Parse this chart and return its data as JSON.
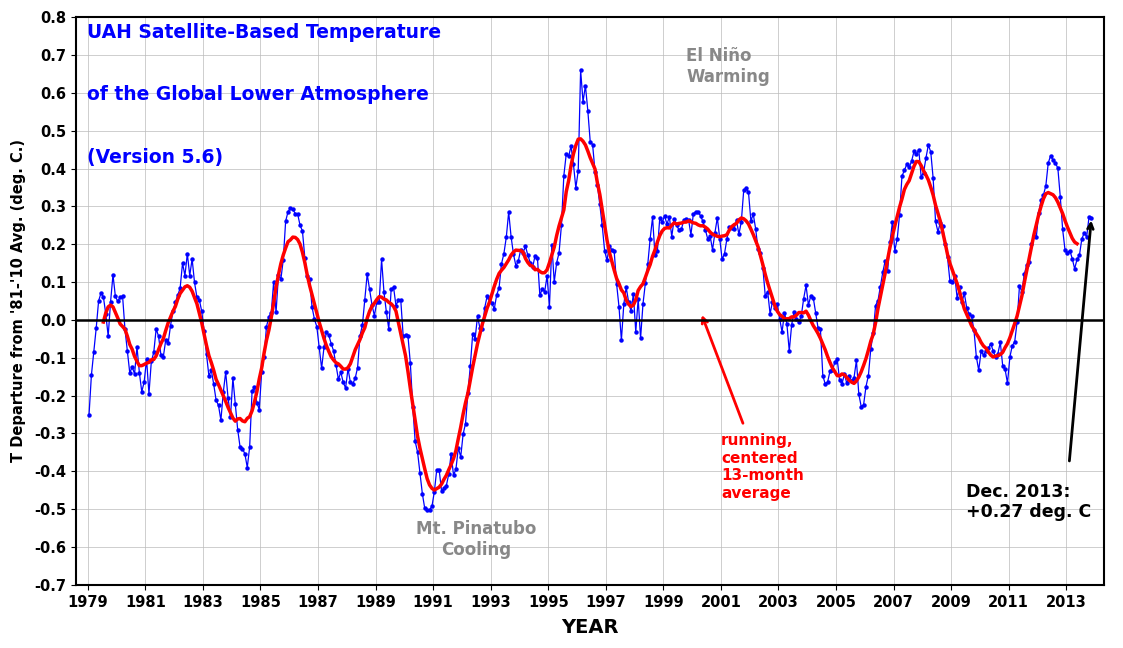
{
  "title_line1": "UAH Satellite-Based Temperature",
  "title_line2": "of the Global Lower Atmosphere",
  "title_line3": "(Version 5.6)",
  "title_color": "#0000FF",
  "xlabel": "YEAR",
  "ylabel": "T Departure from '81-'10 Avg. (deg. C.)",
  "xlim": [
    1978.6,
    2014.3
  ],
  "ylim": [
    -0.7,
    0.8
  ],
  "yticks": [
    -0.7,
    -0.6,
    -0.5,
    -0.4,
    -0.3,
    -0.2,
    -0.1,
    0.0,
    0.1,
    0.2,
    0.3,
    0.4,
    0.5,
    0.6,
    0.7,
    0.8
  ],
  "xticks": [
    1979,
    1981,
    1983,
    1985,
    1987,
    1989,
    1991,
    1993,
    1995,
    1997,
    1999,
    2001,
    2003,
    2005,
    2007,
    2009,
    2011,
    2013
  ],
  "line_color": "#0000FF",
  "smooth_color": "#FF0000",
  "background_color": "#FFFFFF",
  "monthly_data": [
    -0.252,
    -0.146,
    -0.085,
    -0.022,
    0.05,
    0.071,
    0.061,
    0.015,
    -0.043,
    0.048,
    0.119,
    0.062,
    0.049,
    0.06,
    0.063,
    -0.025,
    -0.082,
    -0.14,
    -0.124,
    -0.143,
    -0.071,
    -0.139,
    -0.19,
    -0.164,
    -0.104,
    -0.195,
    -0.109,
    -0.086,
    -0.024,
    -0.043,
    -0.093,
    -0.097,
    -0.053,
    -0.062,
    -0.015,
    0.023,
    0.046,
    0.065,
    0.084,
    0.15,
    0.117,
    0.175,
    0.117,
    0.161,
    0.099,
    0.06,
    0.053,
    0.023,
    -0.029,
    -0.091,
    -0.148,
    -0.133,
    -0.17,
    -0.212,
    -0.226,
    -0.265,
    -0.191,
    -0.138,
    -0.207,
    -0.256,
    -0.154,
    -0.222,
    -0.29,
    -0.336,
    -0.34,
    -0.354,
    -0.39,
    -0.335,
    -0.188,
    -0.178,
    -0.219,
    -0.237,
    -0.137,
    -0.098,
    -0.018,
    0.008,
    0.019,
    0.101,
    0.02,
    0.119,
    0.107,
    0.159,
    0.261,
    0.286,
    0.295,
    0.292,
    0.281,
    0.28,
    0.25,
    0.235,
    0.164,
    0.115,
    0.108,
    0.034,
    0.002,
    -0.018,
    -0.072,
    -0.128,
    -0.072,
    -0.031,
    -0.041,
    -0.063,
    -0.082,
    -0.12,
    -0.157,
    -0.138,
    -0.165,
    -0.18,
    -0.129,
    -0.165,
    -0.169,
    -0.154,
    -0.126,
    -0.042,
    -0.014,
    0.053,
    0.121,
    0.081,
    0.04,
    0.011,
    0.047,
    0.047,
    0.16,
    0.073,
    0.021,
    -0.024,
    0.081,
    0.086,
    0.038,
    0.052,
    0.053,
    -0.042,
    -0.04,
    -0.042,
    -0.115,
    -0.229,
    -0.321,
    -0.349,
    -0.404,
    -0.459,
    -0.498,
    -0.502,
    -0.501,
    -0.493,
    -0.454,
    -0.396,
    -0.396,
    -0.451,
    -0.445,
    -0.438,
    -0.408,
    -0.354,
    -0.41,
    -0.395,
    -0.338,
    -0.362,
    -0.302,
    -0.274,
    -0.193,
    -0.122,
    -0.036,
    -0.05,
    0.009,
    -0.021,
    -0.024,
    0.032,
    0.062,
    0.057,
    0.044,
    0.029,
    0.066,
    0.085,
    0.148,
    0.175,
    0.218,
    0.285,
    0.22,
    0.174,
    0.143,
    0.155,
    0.185,
    0.178,
    0.194,
    0.171,
    0.151,
    0.139,
    0.17,
    0.163,
    0.065,
    0.082,
    0.074,
    0.116,
    0.035,
    0.199,
    0.1,
    0.151,
    0.177,
    0.25,
    0.381,
    0.438,
    0.432,
    0.459,
    0.412,
    0.349,
    0.394,
    0.66,
    0.576,
    0.619,
    0.553,
    0.471,
    0.463,
    0.392,
    0.356,
    0.305,
    0.25,
    0.183,
    0.157,
    0.196,
    0.185,
    0.181,
    0.095,
    0.035,
    -0.054,
    0.041,
    0.086,
    0.048,
    0.023,
    0.068,
    -0.032,
    0.056,
    -0.049,
    0.042,
    0.097,
    0.147,
    0.215,
    0.271,
    0.171,
    0.182,
    0.269,
    0.258,
    0.275,
    0.253,
    0.272,
    0.22,
    0.267,
    0.252,
    0.237,
    0.239,
    0.263,
    0.266,
    0.265,
    0.225,
    0.28,
    0.286,
    0.285,
    0.275,
    0.26,
    0.238,
    0.214,
    0.222,
    0.185,
    0.23,
    0.27,
    0.215,
    0.16,
    0.175,
    0.214,
    0.246,
    0.244,
    0.241,
    0.263,
    0.226,
    0.259,
    0.342,
    0.348,
    0.337,
    0.262,
    0.279,
    0.24,
    0.186,
    0.176,
    0.137,
    0.063,
    0.075,
    0.016,
    0.048,
    0.032,
    0.042,
    0.003,
    -0.032,
    0.019,
    -0.01,
    -0.082,
    -0.013,
    0.022,
    0.003,
    -0.005,
    0.01,
    0.056,
    0.091,
    0.039,
    0.064,
    0.059,
    0.019,
    -0.021,
    -0.025,
    -0.148,
    -0.169,
    -0.164,
    -0.135,
    -0.133,
    -0.112,
    -0.104,
    -0.16,
    -0.169,
    -0.143,
    -0.168,
    -0.148,
    -0.161,
    -0.153,
    -0.107,
    -0.196,
    -0.229,
    -0.224,
    -0.176,
    -0.147,
    -0.076,
    -0.034,
    0.038,
    0.051,
    0.088,
    0.126,
    0.156,
    0.128,
    0.205,
    0.258,
    0.183,
    0.213,
    0.278,
    0.38,
    0.395,
    0.411,
    0.403,
    0.419,
    0.445,
    0.438,
    0.45,
    0.378,
    0.389,
    0.428,
    0.462,
    0.444,
    0.374,
    0.26,
    0.233,
    0.257,
    0.247,
    0.2,
    0.165,
    0.102,
    0.099,
    0.117,
    0.058,
    0.086,
    0.047,
    0.07,
    0.032,
    0.015,
    0.01,
    -0.026,
    -0.097,
    -0.133,
    -0.083,
    -0.093,
    -0.082,
    -0.075,
    -0.063,
    -0.081,
    -0.099,
    -0.089,
    -0.059,
    -0.121,
    -0.131,
    -0.167,
    -0.098,
    -0.068,
    -0.058,
    -0.006,
    0.09,
    0.074,
    0.121,
    0.144,
    0.152,
    0.2,
    0.221,
    0.218,
    0.282,
    0.317,
    0.33,
    0.355,
    0.415,
    0.434,
    0.422,
    0.414,
    0.401,
    0.326,
    0.239,
    0.184,
    0.178,
    0.183,
    0.162,
    0.135,
    0.16,
    0.171,
    0.214,
    0.23,
    0.219,
    0.272,
    0.27
  ]
}
